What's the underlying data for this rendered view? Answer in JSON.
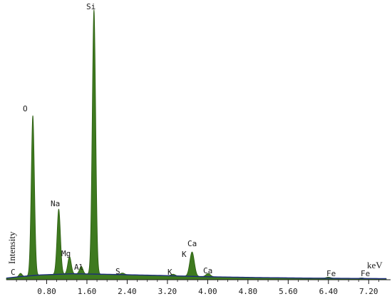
{
  "chart_data": {
    "type": "area",
    "title": "",
    "xlabel": "keV",
    "ylabel": "Intensity",
    "xlim": [
      0.0,
      7.55
    ],
    "ylim": [
      0,
      1.0
    ],
    "grid": false,
    "x_ticks": [
      0.8,
      1.6,
      2.4,
      3.2,
      4.0,
      4.8,
      5.6,
      6.4,
      7.2
    ],
    "x_tick_labels": [
      "0.80",
      "1.60",
      "2.40",
      "3.20",
      "4.00",
      "4.80",
      "5.60",
      "6.40",
      "7.20"
    ],
    "background": [
      {
        "x": 0.0,
        "y": 0.006
      },
      {
        "x": 0.3,
        "y": 0.012
      },
      {
        "x": 0.7,
        "y": 0.018
      },
      {
        "x": 1.3,
        "y": 0.022
      },
      {
        "x": 2.0,
        "y": 0.02
      },
      {
        "x": 3.0,
        "y": 0.016
      },
      {
        "x": 4.0,
        "y": 0.011
      },
      {
        "x": 5.0,
        "y": 0.008
      },
      {
        "x": 6.0,
        "y": 0.006
      },
      {
        "x": 7.55,
        "y": 0.004
      }
    ],
    "peaks": [
      {
        "element": "C",
        "energy": 0.28,
        "height": 0.012,
        "width": 0.03
      },
      {
        "element": "O",
        "energy": 0.525,
        "height": 0.59,
        "width": 0.032
      },
      {
        "element": "Na",
        "energy": 1.04,
        "height": 0.24,
        "width": 0.034
      },
      {
        "element": "Mg",
        "energy": 1.254,
        "height": 0.064,
        "width": 0.034
      },
      {
        "element": "Al",
        "energy": 1.487,
        "height": 0.028,
        "width": 0.034
      },
      {
        "element": "Si",
        "energy": 1.74,
        "height": 0.975,
        "width": 0.034
      },
      {
        "element": "S",
        "energy": 2.307,
        "height": 0.006,
        "width": 0.04
      },
      {
        "element": "K",
        "energy": 3.313,
        "height": 0.006,
        "width": 0.04
      },
      {
        "element": "Ca",
        "energy": 3.69,
        "height": 0.09,
        "width": 0.045
      },
      {
        "element": "Ca",
        "energy": 4.01,
        "height": 0.012,
        "width": 0.045
      },
      {
        "element": "Fe",
        "energy": 6.4,
        "height": 0.004,
        "width": 0.045
      },
      {
        "element": "Fe",
        "energy": 7.06,
        "height": 0.002,
        "width": 0.045
      }
    ],
    "peak_labels": [
      {
        "id": "C",
        "text": "C"
      },
      {
        "id": "O",
        "text": "O"
      },
      {
        "id": "Na",
        "text": "Na"
      },
      {
        "id": "Mg",
        "text": "Mg"
      },
      {
        "id": "Al",
        "text": "Al"
      },
      {
        "id": "Si",
        "text": "Si"
      },
      {
        "id": "S",
        "text": "S"
      },
      {
        "id": "K",
        "text": "K"
      },
      {
        "id": "Ca-ka",
        "text": "Ca"
      },
      {
        "id": "Ca-kb",
        "text": "Ca"
      },
      {
        "id": "Fe-ka",
        "text": "Fe"
      },
      {
        "id": "Fe-kb",
        "text": "Fe"
      }
    ],
    "colors": {
      "fill": "#3e7a1f",
      "stroke": "#2d5e12",
      "baseline": "#1c2d7a",
      "axis": "#1a1a1a"
    }
  }
}
